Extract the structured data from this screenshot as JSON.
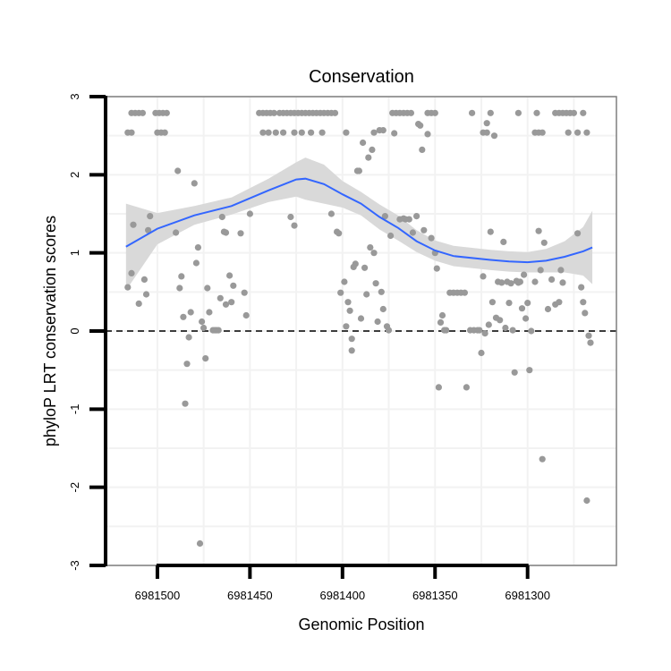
{
  "chart_data": {
    "type": "scatter",
    "title": "Conservation",
    "xlabel": "Genomic Position",
    "ylabel": "phyloP LRT conservation scores",
    "x_reversed": true,
    "xlim": [
      6981528,
      6981252
    ],
    "ylim": [
      -3,
      3
    ],
    "x_ticks": [
      6981500,
      6981450,
      6981400,
      6981350,
      6981300
    ],
    "x_tick_labels": [
      "6981500",
      "6981450",
      "6981400",
      "6981350",
      "6981300"
    ],
    "y_ticks": [
      -3,
      -2,
      -1,
      0,
      1,
      2,
      3
    ],
    "y_tick_labels": [
      "-3",
      "-2",
      "-1",
      "0",
      "1",
      "2",
      "3"
    ],
    "reference_line": {
      "y": 0,
      "style": "dashed"
    },
    "colors": {
      "points": "#999999",
      "smooth": "#3366ff",
      "ribbon": "#d9d9d9",
      "frame": "#7f7f7f",
      "grid": "#f2f2f2"
    },
    "points": [
      [
        6981514,
        2.79
      ],
      [
        6981512,
        2.79
      ],
      [
        6981510,
        2.79
      ],
      [
        6981508,
        2.79
      ],
      [
        6981501,
        2.79
      ],
      [
        6981499,
        2.79
      ],
      [
        6981497,
        2.79
      ],
      [
        6981495,
        2.79
      ],
      [
        6981445,
        2.79
      ],
      [
        6981443,
        2.79
      ],
      [
        6981441,
        2.79
      ],
      [
        6981439,
        2.79
      ],
      [
        6981437,
        2.79
      ],
      [
        6981434,
        2.79
      ],
      [
        6981432,
        2.79
      ],
      [
        6981430,
        2.79
      ],
      [
        6981428,
        2.79
      ],
      [
        6981426,
        2.79
      ],
      [
        6981424,
        2.79
      ],
      [
        6981422,
        2.79
      ],
      [
        6981420,
        2.79
      ],
      [
        6981418,
        2.79
      ],
      [
        6981416,
        2.79
      ],
      [
        6981414,
        2.79
      ],
      [
        6981412,
        2.79
      ],
      [
        6981410,
        2.79
      ],
      [
        6981408,
        2.79
      ],
      [
        6981406,
        2.79
      ],
      [
        6981404,
        2.79
      ],
      [
        6981373,
        2.79
      ],
      [
        6981371,
        2.79
      ],
      [
        6981369,
        2.79
      ],
      [
        6981367,
        2.79
      ],
      [
        6981365,
        2.79
      ],
      [
        6981363,
        2.79
      ],
      [
        6981354,
        2.79
      ],
      [
        6981352,
        2.79
      ],
      [
        6981350,
        2.79
      ],
      [
        6981330,
        2.79
      ],
      [
        6981320,
        2.79
      ],
      [
        6981305,
        2.79
      ],
      [
        6981295,
        2.79
      ],
      [
        6981285,
        2.79
      ],
      [
        6981283,
        2.79
      ],
      [
        6981281,
        2.79
      ],
      [
        6981279,
        2.79
      ],
      [
        6981277,
        2.79
      ],
      [
        6981275,
        2.79
      ],
      [
        6981270,
        2.79
      ],
      [
        6981516,
        2.54
      ],
      [
        6981514,
        2.54
      ],
      [
        6981500,
        2.54
      ],
      [
        6981498,
        2.54
      ],
      [
        6981496,
        2.54
      ],
      [
        6981443,
        2.54
      ],
      [
        6981440,
        2.54
      ],
      [
        6981436,
        2.54
      ],
      [
        6981432,
        2.54
      ],
      [
        6981426,
        2.54
      ],
      [
        6981422,
        2.54
      ],
      [
        6981417,
        2.54
      ],
      [
        6981411,
        2.54
      ],
      [
        6981398,
        2.54
      ],
      [
        6981383,
        2.54
      ],
      [
        6981324,
        2.54
      ],
      [
        6981322,
        2.54
      ],
      [
        6981296,
        2.54
      ],
      [
        6981294,
        2.54
      ],
      [
        6981292,
        2.54
      ],
      [
        6981278,
        2.54
      ],
      [
        6981273,
        2.54
      ],
      [
        6981268,
        2.54
      ],
      [
        6981516,
        0.56
      ],
      [
        6981514,
        0.74
      ],
      [
        6981513,
        1.36
      ],
      [
        6981510,
        0.35
      ],
      [
        6981507,
        0.66
      ],
      [
        6981506,
        0.47
      ],
      [
        6981505,
        1.29
      ],
      [
        6981504,
        1.47
      ],
      [
        6981490,
        1.26
      ],
      [
        6981489,
        2.05
      ],
      [
        6981488,
        0.55
      ],
      [
        6981487,
        0.7
      ],
      [
        6981486,
        0.18
      ],
      [
        6981485,
        -0.93
      ],
      [
        6981484,
        -0.42
      ],
      [
        6981483,
        -0.08
      ],
      [
        6981482,
        0.24
      ],
      [
        6981480,
        1.89
      ],
      [
        6981479,
        0.87
      ],
      [
        6981478,
        1.07
      ],
      [
        6981477,
        -2.72
      ],
      [
        6981476,
        0.12
      ],
      [
        6981475,
        0.04
      ],
      [
        6981474,
        -0.35
      ],
      [
        6981473,
        0.55
      ],
      [
        6981472,
        0.24
      ],
      [
        6981470,
        0.01
      ],
      [
        6981469,
        0.01
      ],
      [
        6981468,
        0.01
      ],
      [
        6981467,
        0.01
      ],
      [
        6981466,
        0.42
      ],
      [
        6981465,
        1.46
      ],
      [
        6981464,
        1.27
      ],
      [
        6981463,
        1.26
      ],
      [
        6981463,
        0.34
      ],
      [
        6981461,
        0.71
      ],
      [
        6981460,
        0.37
      ],
      [
        6981459,
        0.58
      ],
      [
        6981455,
        1.25
      ],
      [
        6981453,
        0.49
      ],
      [
        6981452,
        0.2
      ],
      [
        6981450,
        1.5
      ],
      [
        6981428,
        1.46
      ],
      [
        6981426,
        1.35
      ],
      [
        6981406,
        1.5
      ],
      [
        6981403,
        1.27
      ],
      [
        6981402,
        1.25
      ],
      [
        6981401,
        0.49
      ],
      [
        6981399,
        0.63
      ],
      [
        6981398,
        0.06
      ],
      [
        6981397,
        0.37
      ],
      [
        6981396,
        0.26
      ],
      [
        6981395,
        -0.1
      ],
      [
        6981395,
        -0.25
      ],
      [
        6981394,
        0.82
      ],
      [
        6981393,
        0.86
      ],
      [
        6981392,
        2.05
      ],
      [
        6981391,
        2.05
      ],
      [
        6981390,
        0.16
      ],
      [
        6981389,
        2.41
      ],
      [
        6981388,
        0.81
      ],
      [
        6981387,
        0.47
      ],
      [
        6981386,
        2.22
      ],
      [
        6981385,
        1.07
      ],
      [
        6981384,
        2.32
      ],
      [
        6981383,
        1.0
      ],
      [
        6981382,
        0.61
      ],
      [
        6981381,
        0.12
      ],
      [
        6981380,
        2.57
      ],
      [
        6981379,
        0.5
      ],
      [
        6981378,
        2.57
      ],
      [
        6981378,
        0.28
      ],
      [
        6981377,
        1.47
      ],
      [
        6981376,
        0.06
      ],
      [
        6981375,
        0.01
      ],
      [
        6981374,
        1.22
      ],
      [
        6981372,
        2.53
      ],
      [
        6981369,
        1.43
      ],
      [
        6981367,
        1.44
      ],
      [
        6981366,
        1.43
      ],
      [
        6981364,
        1.43
      ],
      [
        6981362,
        1.26
      ],
      [
        6981360,
        1.47
      ],
      [
        6981359,
        2.65
      ],
      [
        6981358,
        2.63
      ],
      [
        6981357,
        2.32
      ],
      [
        6981356,
        1.29
      ],
      [
        6981354,
        2.52
      ],
      [
        6981352,
        1.19
      ],
      [
        6981350,
        1.0
      ],
      [
        6981349,
        0.8
      ],
      [
        6981348,
        -0.72
      ],
      [
        6981347,
        0.11
      ],
      [
        6981346,
        0.2
      ],
      [
        6981345,
        0.01
      ],
      [
        6981344,
        0.01
      ],
      [
        6981342,
        0.49
      ],
      [
        6981340,
        0.49
      ],
      [
        6981338,
        0.49
      ],
      [
        6981336,
        0.49
      ],
      [
        6981334,
        0.49
      ],
      [
        6981333,
        -0.72
      ],
      [
        6981331,
        0.01
      ],
      [
        6981329,
        0.01
      ],
      [
        6981327,
        0.01
      ],
      [
        6981326,
        0.01
      ],
      [
        6981325,
        -0.28
      ],
      [
        6981324,
        0.7
      ],
      [
        6981323,
        -0.03
      ],
      [
        6981322,
        2.66
      ],
      [
        6981321,
        0.08
      ],
      [
        6981320,
        1.27
      ],
      [
        6981319,
        0.37
      ],
      [
        6981318,
        2.5
      ],
      [
        6981317,
        0.17
      ],
      [
        6981316,
        0.63
      ],
      [
        6981315,
        0.14
      ],
      [
        6981314,
        0.62
      ],
      [
        6981313,
        1.14
      ],
      [
        6981312,
        0.04
      ],
      [
        6981311,
        0.63
      ],
      [
        6981310,
        0.36
      ],
      [
        6981309,
        0.61
      ],
      [
        6981308,
        0.01
      ],
      [
        6981307,
        -0.53
      ],
      [
        6981306,
        0.64
      ],
      [
        6981305,
        0.62
      ],
      [
        6981304,
        0.63
      ],
      [
        6981303,
        0.29
      ],
      [
        6981302,
        0.72
      ],
      [
        6981301,
        0.16
      ],
      [
        6981300,
        0.36
      ],
      [
        6981299,
        -0.5
      ],
      [
        6981298,
        0.0
      ],
      [
        6981296,
        0.63
      ],
      [
        6981294,
        1.28
      ],
      [
        6981293,
        0.78
      ],
      [
        6981292,
        -1.64
      ],
      [
        6981291,
        1.13
      ],
      [
        6981289,
        0.28
      ],
      [
        6981287,
        0.66
      ],
      [
        6981285,
        0.34
      ],
      [
        6981283,
        0.37
      ],
      [
        6981282,
        0.78
      ],
      [
        6981281,
        0.62
      ],
      [
        6981273,
        1.25
      ],
      [
        6981271,
        0.56
      ],
      [
        6981270,
        0.37
      ],
      [
        6981269,
        0.23
      ],
      [
        6981268,
        -2.17
      ],
      [
        6981267,
        -0.06
      ],
      [
        6981266,
        -0.15
      ]
    ],
    "smooth_line": [
      [
        6981517,
        1.08
      ],
      [
        6981500,
        1.31
      ],
      [
        6981480,
        1.48
      ],
      [
        6981460,
        1.6
      ],
      [
        6981440,
        1.8
      ],
      [
        6981425,
        1.94
      ],
      [
        6981420,
        1.95
      ],
      [
        6981410,
        1.88
      ],
      [
        6981400,
        1.75
      ],
      [
        6981390,
        1.63
      ],
      [
        6981380,
        1.46
      ],
      [
        6981370,
        1.32
      ],
      [
        6981360,
        1.15
      ],
      [
        6981350,
        1.03
      ],
      [
        6981340,
        0.96
      ],
      [
        6981320,
        0.91
      ],
      [
        6981310,
        0.89
      ],
      [
        6981300,
        0.88
      ],
      [
        6981290,
        0.9
      ],
      [
        6981280,
        0.95
      ],
      [
        6981270,
        1.02
      ],
      [
        6981265,
        1.07
      ]
    ],
    "ribbon_upper": [
      [
        6981517,
        1.63
      ],
      [
        6981500,
        1.51
      ],
      [
        6981480,
        1.6
      ],
      [
        6981460,
        1.71
      ],
      [
        6981440,
        1.95
      ],
      [
        6981425,
        2.16
      ],
      [
        6981420,
        2.22
      ],
      [
        6981410,
        2.13
      ],
      [
        6981400,
        1.92
      ],
      [
        6981390,
        1.78
      ],
      [
        6981380,
        1.62
      ],
      [
        6981370,
        1.48
      ],
      [
        6981360,
        1.29
      ],
      [
        6981350,
        1.16
      ],
      [
        6981340,
        1.09
      ],
      [
        6981320,
        1.04
      ],
      [
        6981310,
        1.02
      ],
      [
        6981300,
        1.01
      ],
      [
        6981290,
        1.05
      ],
      [
        6981280,
        1.15
      ],
      [
        6981270,
        1.33
      ],
      [
        6981265,
        1.54
      ]
    ],
    "ribbon_lower": [
      [
        6981517,
        0.52
      ],
      [
        6981500,
        1.11
      ],
      [
        6981480,
        1.36
      ],
      [
        6981460,
        1.49
      ],
      [
        6981440,
        1.65
      ],
      [
        6981425,
        1.72
      ],
      [
        6981420,
        1.68
      ],
      [
        6981410,
        1.63
      ],
      [
        6981400,
        1.58
      ],
      [
        6981390,
        1.48
      ],
      [
        6981380,
        1.3
      ],
      [
        6981370,
        1.16
      ],
      [
        6981360,
        1.01
      ],
      [
        6981350,
        0.9
      ],
      [
        6981340,
        0.83
      ],
      [
        6981320,
        0.78
      ],
      [
        6981310,
        0.76
      ],
      [
        6981300,
        0.75
      ],
      [
        6981290,
        0.75
      ],
      [
        6981280,
        0.75
      ],
      [
        6981270,
        0.71
      ],
      [
        6981265,
        0.6
      ]
    ]
  }
}
